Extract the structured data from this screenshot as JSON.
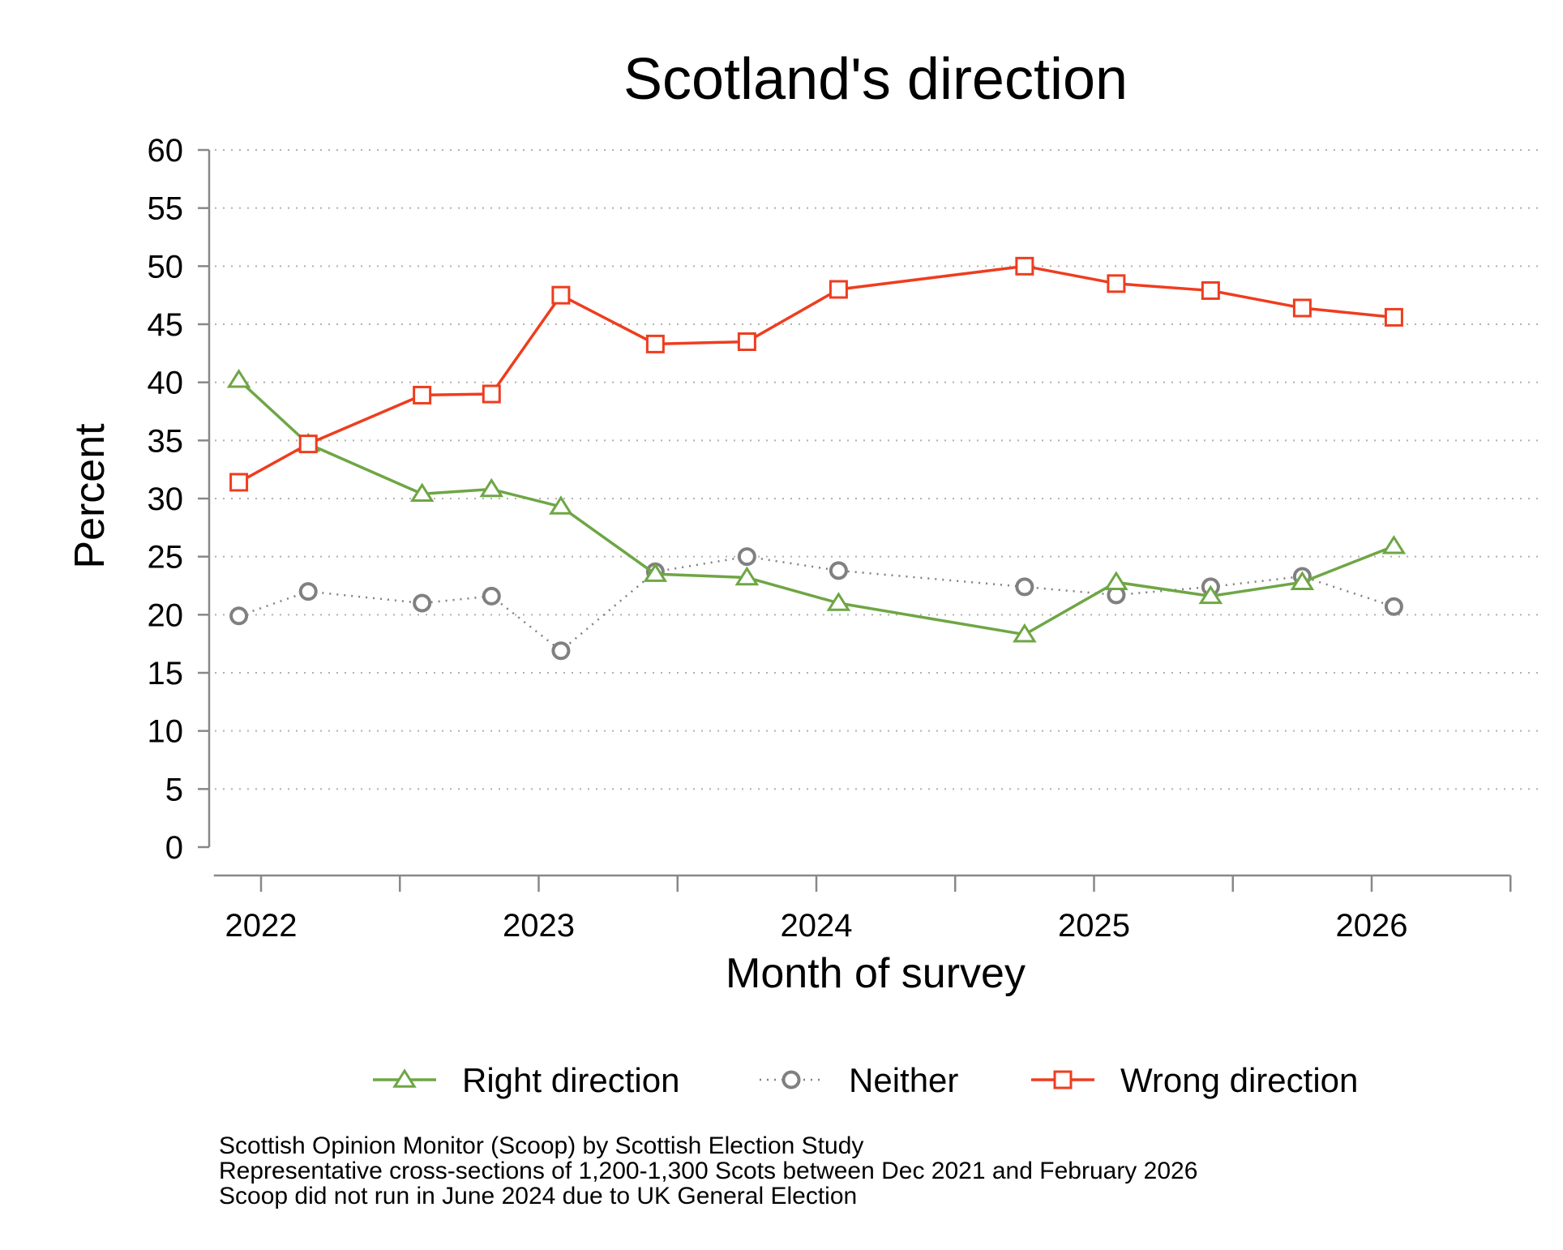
{
  "chart_data": {
    "type": "line",
    "title": "Scotland's direction",
    "xlabel": "Month of survey",
    "ylabel": "Percent",
    "ylim": [
      0,
      60
    ],
    "yticks": [
      0,
      5,
      10,
      15,
      20,
      25,
      30,
      35,
      40,
      45,
      50,
      55,
      60
    ],
    "grid": "horizontal dotted",
    "xlim": [
      2021.83,
      2026.5
    ],
    "xtick_major": [
      2022,
      2023,
      2024,
      2025,
      2026
    ],
    "xtick_labels": [
      "2022",
      "2023",
      "2024",
      "2025",
      "2026"
    ],
    "xtick_minor": [
      2022.5,
      2023.5,
      2024.5,
      2025.5,
      2026.5
    ],
    "x": [
      2021.92,
      2022.17,
      2022.58,
      2022.83,
      2023.08,
      2023.42,
      2023.75,
      2024.08,
      2024.75,
      2025.08,
      2025.42,
      2025.75,
      2026.08
    ],
    "series": [
      {
        "name": "Right direction",
        "color": "#6ea645",
        "marker": "triangle",
        "dash": "solid",
        "values": [
          40.2,
          34.7,
          30.4,
          30.8,
          29.3,
          23.5,
          23.2,
          21.0,
          18.3,
          22.8,
          21.6,
          22.8,
          25.9
        ]
      },
      {
        "name": "Neither",
        "color": "#808080",
        "marker": "circle",
        "dash": "dotted",
        "values": [
          19.9,
          22.0,
          21.0,
          21.6,
          16.9,
          23.7,
          25.0,
          23.8,
          22.4,
          21.7,
          22.4,
          23.3,
          20.7
        ]
      },
      {
        "name": "Wrong direction",
        "color": "#ee3d1f",
        "marker": "square",
        "dash": "solid",
        "values": [
          31.4,
          34.7,
          38.9,
          39.0,
          47.5,
          43.3,
          43.5,
          48.0,
          50.0,
          48.5,
          47.9,
          46.4,
          45.6
        ]
      }
    ],
    "legend": "bottom"
  },
  "footer": {
    "line1": "Scottish Opinion Monitor (Scoop) by Scottish Election Study",
    "line2": "Representative cross-sections of 1,200-1,300 Scots between Dec 2021 and February 2026",
    "line3": "Scoop did not run in June 2024 due to UK General Election"
  }
}
